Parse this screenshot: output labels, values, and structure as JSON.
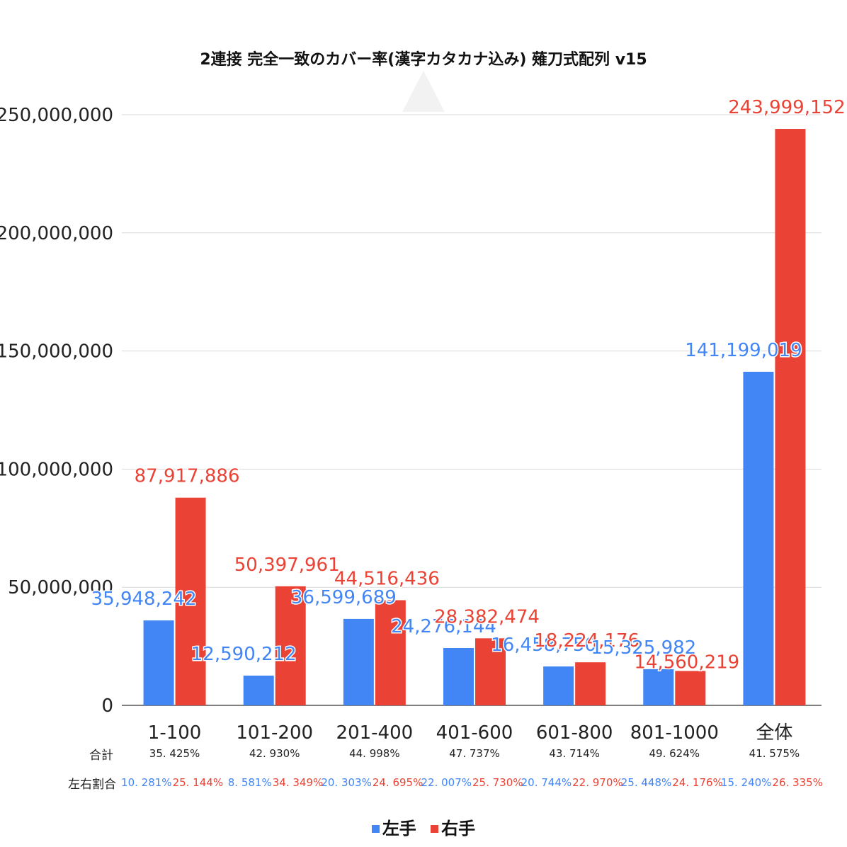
{
  "chart_data": {
    "type": "bar",
    "title": "2連接 完全一致のカバー率(漢字カタカナ込み) 薙刀式配列 v15",
    "categories": [
      "1-100",
      "101-200",
      "201-400",
      "401-600",
      "601-800",
      "801-1000",
      "全体"
    ],
    "series": [
      {
        "name": "左手",
        "color": "#4285f4",
        "values": [
          35948242,
          12590212,
          36599689,
          24276144,
          16458750,
          15325982,
          141199019
        ],
        "labels": [
          "35,948,242",
          "12,590,212",
          "36,599,689",
          "24,276,144",
          "16,458,750",
          "15,325,982",
          "141,199,019"
        ]
      },
      {
        "name": "右手",
        "color": "#ea4335",
        "values": [
          87917886,
          50397961,
          44516436,
          28382474,
          18224176,
          14560219,
          243999152
        ],
        "labels": [
          "87,917,886",
          "50,397,961",
          "44,516,436",
          "28,382,474",
          "18,224,176",
          "14,560,219",
          "243,999,152"
        ]
      }
    ],
    "ylim": [
      0,
      250000000
    ],
    "yticks": [
      0,
      50000000,
      100000000,
      150000000,
      200000000,
      250000000
    ],
    "ytick_labels": [
      "0",
      "50,000,000",
      "100,000,000",
      "150,000,000",
      "200,000,000",
      "250,000,000"
    ],
    "xlabel": "",
    "ylabel": "",
    "grid": true,
    "legend": "bottom"
  },
  "rows": {
    "total_label": "合計",
    "total_values": [
      "35. 425%",
      "42. 930%",
      "44. 998%",
      "47. 737%",
      "43. 714%",
      "49. 624%",
      "41. 575%"
    ],
    "ratio_label": "左右割合",
    "left_ratios": [
      "10. 281%",
      "8. 581%",
      "20. 303%",
      "22. 007%",
      "20. 744%",
      "25. 448%",
      "15. 240%"
    ],
    "right_ratios": [
      "25. 144%",
      "34. 349%",
      "24. 695%",
      "25. 730%",
      "22. 970%",
      "24. 176%",
      "26. 335%"
    ]
  },
  "legend": {
    "left": "左手",
    "right": "右手"
  }
}
